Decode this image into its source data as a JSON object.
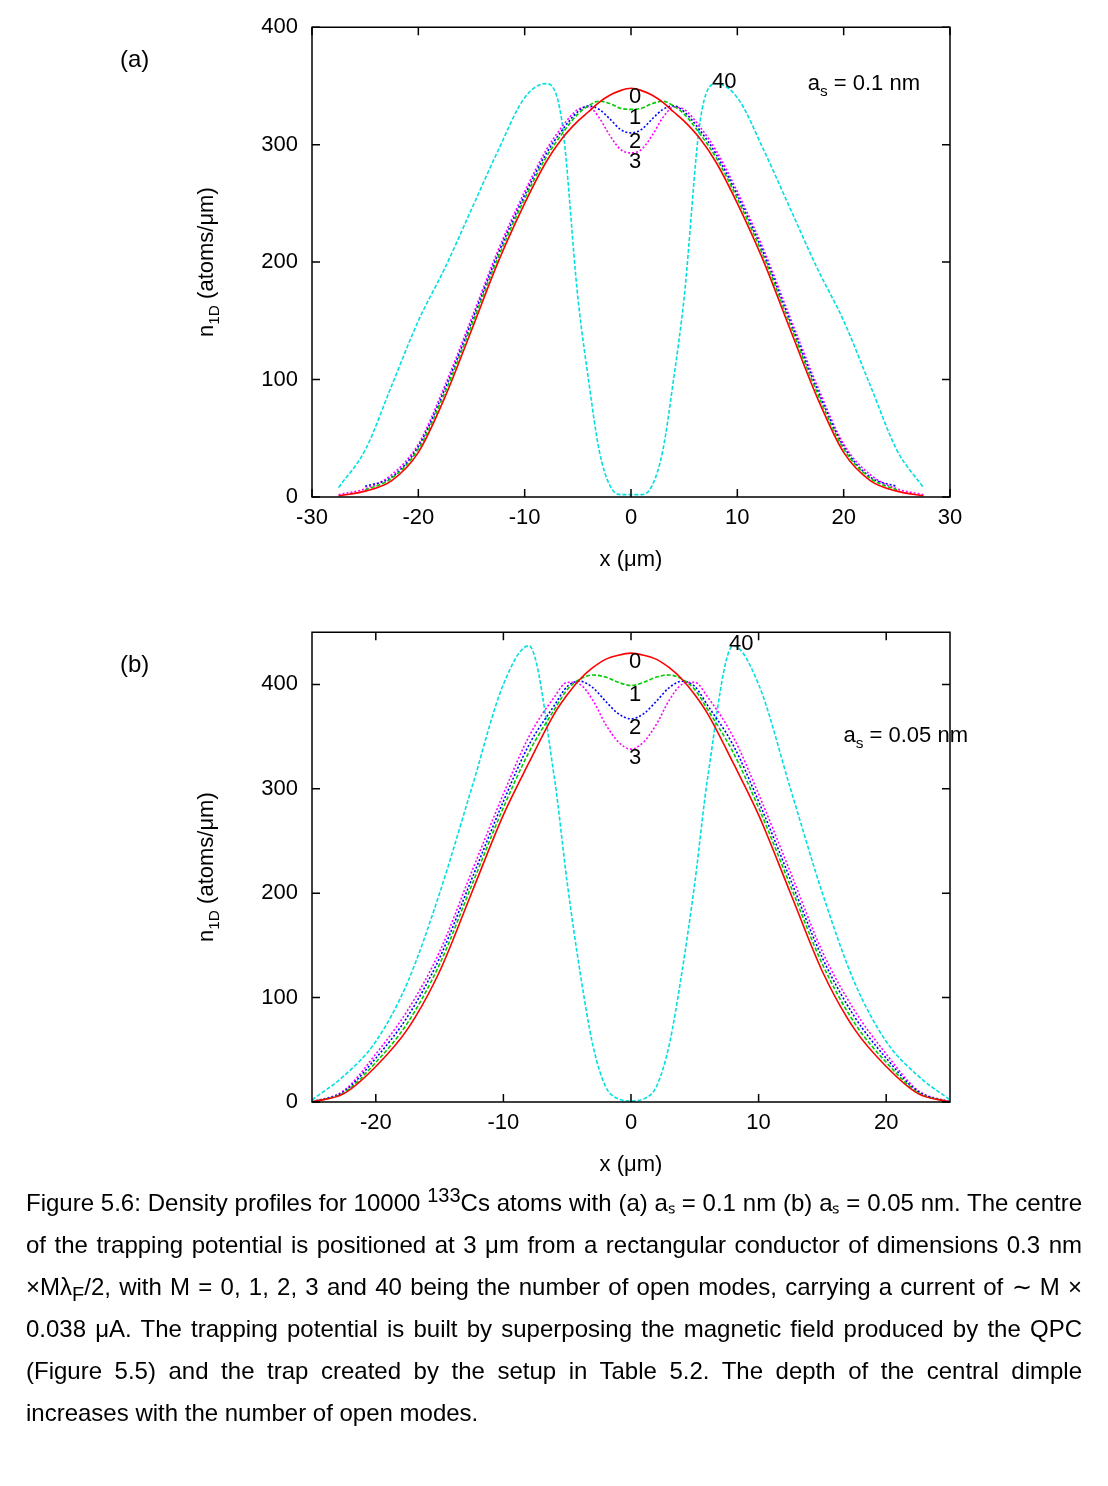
{
  "chart_data": [
    {
      "type": "line",
      "xlabel": "x (μm)",
      "ylabel": "n$_{1D}$ (atoms/μm)",
      "xlim": [
        -30,
        30
      ],
      "ylim": [
        0,
        400
      ],
      "xticks": [
        -30,
        -20,
        -10,
        0,
        10,
        20,
        30
      ],
      "yticks": [
        0,
        100,
        200,
        300,
        400
      ],
      "grid": false,
      "legend": false,
      "marker": "none",
      "annotations": [
        "(a)",
        "a$_{s}$ = 0.1 nm"
      ],
      "x": [
        -27.5,
        -25,
        -22.5,
        -20,
        -17.5,
        -15,
        -12.5,
        -10,
        -8,
        -6.5,
        -5,
        -4,
        -3,
        -2,
        -1,
        0,
        1,
        2,
        3,
        4,
        5,
        6.5,
        8,
        10,
        12.5,
        15,
        17.5,
        20,
        22.5,
        25,
        27.5
      ],
      "series": [
        {
          "name": "0",
          "color": "#ff0000",
          "line_style": "solid",
          "values": [
            1,
            5,
            14,
            38,
            85,
            142,
            200,
            250,
            285,
            305,
            320,
            328,
            336,
            342,
            346,
            348,
            346,
            342,
            336,
            328,
            320,
            305,
            285,
            250,
            200,
            142,
            85,
            38,
            14,
            5,
            1
          ]
        },
        {
          "name": "1",
          "color": "#00cc00",
          "line_style": "dashed",
          "values": [
            null,
            6,
            16,
            41,
            89,
            146,
            204,
            254,
            289,
            309,
            326,
            333,
            337,
            335,
            331,
            330,
            331,
            335,
            337,
            333,
            326,
            309,
            289,
            254,
            204,
            146,
            89,
            41,
            16,
            6,
            null
          ]
        },
        {
          "name": "2",
          "color": "#0000ff",
          "line_style": "dotted",
          "values": [
            null,
            9,
            17,
            43,
            92,
            149,
            207,
            257,
            292,
            312,
            328,
            333,
            330,
            322,
            313,
            310,
            313,
            322,
            330,
            333,
            328,
            312,
            292,
            257,
            207,
            149,
            92,
            43,
            17,
            9,
            null
          ]
        },
        {
          "name": "3",
          "color": "#ff00ff",
          "line_style": "dotted",
          "values": [
            2,
            7,
            19,
            45,
            95,
            152,
            210,
            260,
            295,
            315,
            330,
            332,
            323,
            308,
            296,
            293,
            296,
            308,
            323,
            332,
            330,
            315,
            295,
            260,
            210,
            152,
            95,
            45,
            19,
            7,
            2
          ]
        },
        {
          "name": "40",
          "color": "#00e0e0",
          "line_style": "dashed",
          "values": [
            8,
            40,
            95,
            150,
            195,
            245,
            295,
            340,
            352,
            320,
            170,
            100,
            40,
            10,
            2,
            2,
            2,
            10,
            40,
            100,
            170,
            320,
            352,
            340,
            295,
            245,
            195,
            150,
            95,
            40,
            8
          ]
        }
      ]
    },
    {
      "type": "line",
      "xlabel": "x (μm)",
      "ylabel": "n$_{1D}$ (atoms/μm)",
      "xlim": [
        -25,
        25
      ],
      "ylim": [
        0,
        450
      ],
      "xticks": [
        -20,
        -10,
        0,
        10,
        20
      ],
      "yticks": [
        0,
        100,
        200,
        300,
        400
      ],
      "grid": false,
      "legend": false,
      "marker": "none",
      "annotations": [
        "(b)",
        "a$_{s}$ = 0.05 nm",
        "Figure 5.6: Density profiles for 10000 $^{133}$Cs atoms with (a) aₛ = 0.1 nm (b) aₛ = 0.05 nm. The centre of the trapping potential is positioned at 3 μm from a rectangular conductor of dimensions 0.3 nm ×Mλ$_{F}$/2, with M = 0, 1, 2, 3 and 40 being the number of open modes, carrying a current of ∼ M × 0.038 μA. The trapping potential is built by superposing the magnetic field produced by the QPC (Figure 5.5) and the trap created by the setup in Table 5.2. The depth of the central dimple increases with the number of open modes."
      ],
      "x": [
        -25,
        -22.5,
        -20,
        -17.5,
        -15,
        -12.5,
        -10,
        -8,
        -6,
        -5,
        -4,
        -3,
        -2,
        -1,
        0,
        1,
        2,
        3,
        4,
        5,
        6,
        8,
        10,
        12.5,
        15,
        17.5,
        20,
        22.5,
        25
      ],
      "series": [
        {
          "name": "0",
          "color": "#ff0000",
          "line_style": "solid",
          "values": [
            0,
            8,
            34,
            70,
            125,
            200,
            275,
            325,
            372,
            390,
            405,
            416,
            424,
            428,
            430,
            428,
            424,
            416,
            405,
            390,
            372,
            325,
            275,
            200,
            125,
            70,
            34,
            8,
            0
          ]
        },
        {
          "name": "1",
          "color": "#00cc00",
          "line_style": "dashed",
          "values": [
            0,
            9,
            38,
            76,
            132,
            207,
            282,
            335,
            376,
            395,
            405,
            409,
            407,
            402,
            399,
            402,
            407,
            409,
            405,
            395,
            376,
            335,
            282,
            207,
            132,
            76,
            38,
            9,
            0
          ]
        },
        {
          "name": "2",
          "color": "#0000ff",
          "line_style": "dotted",
          "values": [
            0,
            10,
            42,
            82,
            138,
            213,
            288,
            342,
            380,
            398,
            403,
            397,
            384,
            372,
            367,
            372,
            384,
            397,
            403,
            398,
            380,
            342,
            288,
            213,
            138,
            82,
            42,
            10,
            0
          ]
        },
        {
          "name": "3",
          "color": "#ff00ff",
          "line_style": "dotted",
          "values": [
            0,
            11,
            46,
            88,
            144,
            220,
            295,
            350,
            388,
            402,
            400,
            385,
            362,
            345,
            338,
            345,
            362,
            385,
            400,
            402,
            388,
            350,
            295,
            220,
            144,
            88,
            46,
            11,
            0
          ]
        },
        {
          "name": "40",
          "color": "#00e0e0",
          "line_style": "dashed",
          "values": [
            2,
            25,
            58,
            115,
            200,
            300,
            400,
            437,
            310,
            210,
            125,
            55,
            15,
            3,
            1,
            3,
            15,
            55,
            125,
            210,
            310,
            437,
            400,
            300,
            200,
            115,
            58,
            25,
            2
          ]
        }
      ]
    }
  ]
}
